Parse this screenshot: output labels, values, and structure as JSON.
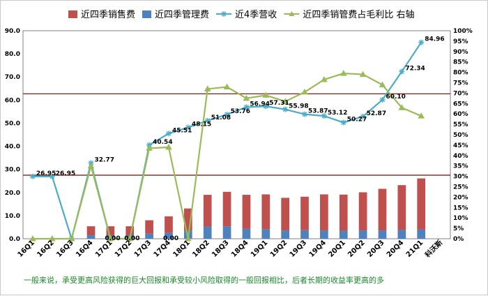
{
  "chart_data": {
    "type": "bar",
    "subtype": "stacked-bar-with-lines-dual-axis",
    "categories": [
      "16Q1",
      "16Q2",
      "16Q3",
      "16Q4",
      "17Q1",
      "17Q2",
      "17Q3",
      "17Q4",
      "18Q1",
      "18Q2",
      "18Q3",
      "18Q4",
      "19Q1",
      "19Q2",
      "19Q3",
      "19Q4",
      "20Q1",
      "20Q2",
      "20Q3",
      "20Q4",
      "21Q1"
    ],
    "extra_category_label": "科沃斯",
    "series": [
      {
        "name": "近四季销售费",
        "type": "bar",
        "axis": "left",
        "color": "#c0504d",
        "values": [
          0,
          0,
          0,
          3.9,
          3.9,
          3.9,
          5.8,
          7.1,
          9.6,
          13.7,
          14.9,
          14.6,
          15.0,
          14.1,
          14.5,
          15.6,
          15.6,
          16.5,
          18.0,
          19.3,
          22.0
        ]
      },
      {
        "name": "近四季管理费",
        "type": "bar",
        "axis": "left",
        "color": "#4f81bd",
        "values": [
          0,
          0,
          0,
          1.5,
          1.5,
          1.5,
          2.2,
          2.6,
          3.5,
          5.3,
          5.4,
          4.4,
          4.2,
          3.6,
          3.7,
          3.6,
          3.5,
          3.6,
          3.6,
          3.9,
          4.1
        ]
      },
      {
        "name": "近4季营收",
        "type": "line",
        "axis": "left",
        "color": "#4bacc6",
        "marker": "asterisk",
        "values": [
          26.95,
          26.95,
          0,
          32.77,
          0,
          0,
          40.54,
          45.51,
          48.15,
          51.08,
          53.76,
          56.94,
          57.31,
          55.98,
          53.87,
          53.12,
          50.27,
          52.87,
          60.1,
          72.34,
          84.96
        ]
      },
      {
        "name": "近四季销管费占毛利比 右轴",
        "type": "line",
        "axis": "right",
        "color": "#9bbb59",
        "marker": "triangle",
        "values": [
          0,
          0,
          0,
          0.35,
          0,
          0,
          0.435,
          0.44,
          0,
          0.72,
          0.73,
          0.675,
          0.69,
          0.66,
          0.705,
          0.765,
          0.795,
          0.79,
          0.74,
          0.63,
          0.59
        ]
      }
    ],
    "data_labels": {
      "series": "近4季营收",
      "labels": [
        "26.95",
        "26.95",
        "",
        "32.77",
        "0.00",
        "0.00",
        "40.54",
        "45.51",
        "48.15",
        "51.08",
        "53.76",
        "56.94",
        "57.31",
        "55.98",
        "53.87",
        "53.12",
        "50.27",
        "52.87",
        "60.10",
        "72.34",
        "84.96"
      ],
      "extra_zero_label": "0.00"
    },
    "reference_lines": [
      {
        "axis": "left",
        "value": 62.7,
        "color": "#8b1a1a"
      },
      {
        "axis": "left",
        "value": 27.5,
        "color": "#8b1a1a"
      }
    ],
    "ylim": [
      0,
      90
    ],
    "y_ticks": [
      "0.0",
      "10.0",
      "20.0",
      "30.0",
      "40.0",
      "50.0",
      "60.0",
      "70.0",
      "80.0",
      "90.0"
    ],
    "y2lim": [
      0,
      1
    ],
    "y2_ticks": [
      "0%",
      "5%",
      "10%",
      "15%",
      "20%",
      "25%",
      "30%",
      "35%",
      "40%",
      "45%",
      "50%",
      "55%",
      "60%",
      "65%",
      "70%",
      "75%",
      "80%",
      "85%",
      "90%",
      "95%",
      "100%"
    ],
    "legend_position": "top",
    "grid": false
  },
  "footnote": "一般来说，承受更高风险获得的巨大回报和承受较小风险取得的一般回报相比，后者长期的收益率更高的多"
}
